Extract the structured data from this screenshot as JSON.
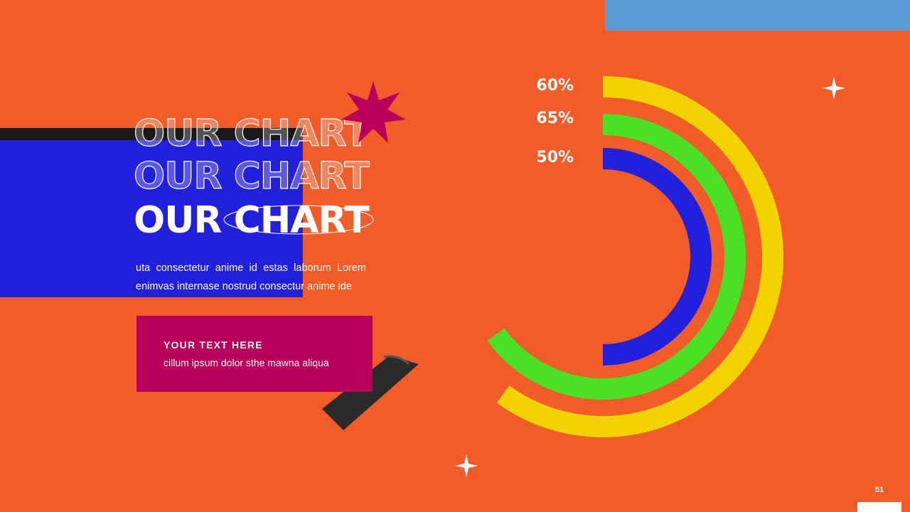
{
  "slide": {
    "title_lines": [
      "OUR CHART",
      "OUR CHART",
      "OUR CHART"
    ],
    "body_lines": [
      "uta consectetur anime id estas laborum Lorem",
      "enimvas internase nostrud consectur anime ide"
    ],
    "card": {
      "title": "YOUR TEXT HERE",
      "text": "cillum ipsum dolor sthe mawna aliqua"
    },
    "page_number": "51",
    "colors": {
      "background": "#f25c28",
      "blue_panel": "#2320dc",
      "card": "#b8005a",
      "top_bar": "#5b9bd5",
      "star": "#b8005a"
    }
  },
  "chart_data": {
    "type": "radial-bar",
    "series": [
      {
        "label": "60%",
        "value": 60,
        "color": "#f2d200"
      },
      {
        "label": "65%",
        "value": 65,
        "color": "#4ae024"
      },
      {
        "label": "50%",
        "value": 50,
        "color": "#2320dc"
      }
    ],
    "max": 100
  }
}
